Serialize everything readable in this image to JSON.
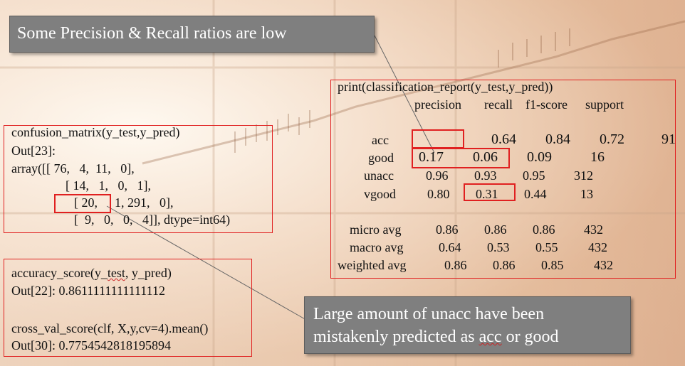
{
  "callouts": {
    "top": "Some Precision & Recall ratios are low",
    "bottom_line1": "Large amount of unacc have been",
    "bottom_line2_a": "mistakenly predicted as ",
    "bottom_line2_b": "acc",
    "bottom_line2_c": " or good"
  },
  "confusion_matrix": {
    "call": "confusion_matrix(y_test,y_pred)",
    "out_label": "Out[23]:",
    "row1": "array([[ 76,   4,  11,   0],",
    "row2": "[ 14,   1,   0,   1],",
    "row3_cell": "[ 20,",
    "row3_rest": "  1, 291,   0],",
    "row4": "[  9,   0,   0,   4]], dtype=int64)"
  },
  "accuracy": {
    "call": "accuracy_score(y_test, y_pred)",
    "out": "Out[22]: 0.8611111111111112",
    "cv_call": "cross_val_score(clf, X,y,cv=4).mean()",
    "cv_out": "Out[30]: 0.7754542818195894"
  },
  "report": {
    "call": "print(classification_report(y_test,y_pred))",
    "headers": [
      "precision",
      "recall",
      "f1-score",
      "support"
    ],
    "rows": [
      {
        "label": "acc",
        "values": [
          "0.64",
          "0.84",
          "0.72",
          "91"
        ]
      },
      {
        "label": "good",
        "values": [
          "0.17",
          "0.06",
          "0.09",
          "16"
        ]
      },
      {
        "label": "unacc",
        "values": [
          "0.96",
          "0.93",
          "0.95",
          "312"
        ]
      },
      {
        "label": "vgood",
        "values": [
          "0.80",
          "0.31",
          "0.44",
          "13"
        ]
      }
    ],
    "avg_rows": [
      {
        "label": "micro avg",
        "values": [
          "0.86",
          "0.86",
          "0.86",
          "432"
        ]
      },
      {
        "label": "macro avg",
        "values": [
          "0.64",
          "0.53",
          "0.55",
          "432"
        ]
      },
      {
        "label": "weighted avg",
        "values": [
          "0.86",
          "0.86",
          "0.85",
          "432"
        ]
      }
    ]
  },
  "colors": {
    "highlight": "#e02020",
    "callout_bg": "#7f7f7f"
  }
}
